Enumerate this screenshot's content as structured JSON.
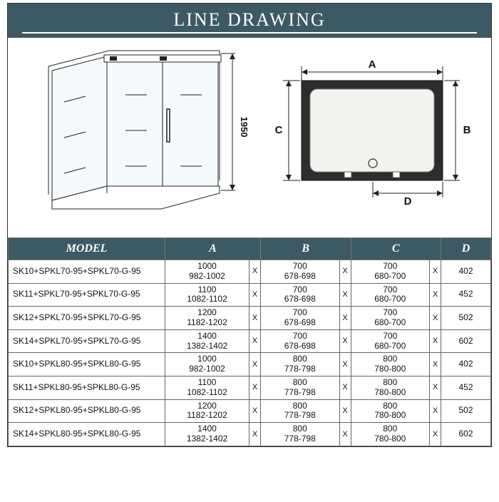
{
  "colors": {
    "header_bg": "#3c5a63",
    "header_fg": "#ffffff",
    "line": "#222222",
    "glass": "#f4f9fc",
    "tray": "#2d2d2d",
    "tray_inner": "#f2f2ee"
  },
  "banner": {
    "title": "LINE DRAWING"
  },
  "iso": {
    "height_label": "1950"
  },
  "topview": {
    "A": "A",
    "B": "B",
    "C": "C",
    "D": "D"
  },
  "table": {
    "headers": [
      "MODEL",
      "A",
      "B",
      "C",
      "D"
    ],
    "rows": [
      {
        "model": "SK10+SPKL70-95+SPKL70-G-95",
        "A": [
          "1000",
          "982-1002"
        ],
        "B": [
          "700",
          "678-698"
        ],
        "C": [
          "700",
          "680-700"
        ],
        "D": "402"
      },
      {
        "model": "SK11+SPKL70-95+SPKL70-G-95",
        "A": [
          "1100",
          "1082-1102"
        ],
        "B": [
          "700",
          "678-698"
        ],
        "C": [
          "700",
          "680-700"
        ],
        "D": "452"
      },
      {
        "model": "SK12+SPKL70-95+SPKL70-G-95",
        "A": [
          "1200",
          "1182-1202"
        ],
        "B": [
          "700",
          "678-698"
        ],
        "C": [
          "700",
          "680-700"
        ],
        "D": "502"
      },
      {
        "model": "SK14+SPKL70-95+SPKL70-G-95",
        "A": [
          "1400",
          "1382-1402"
        ],
        "B": [
          "700",
          "678-698"
        ],
        "C": [
          "700",
          "680-700"
        ],
        "D": "602"
      },
      {
        "model": "SK10+SPKL80-95+SPKL80-G-95",
        "A": [
          "1000",
          "982-1002"
        ],
        "B": [
          "800",
          "778-798"
        ],
        "C": [
          "800",
          "780-800"
        ],
        "D": "402"
      },
      {
        "model": "SK11+SPKL80-95+SPKL80-G-95",
        "A": [
          "1100",
          "1082-1102"
        ],
        "B": [
          "800",
          "778-798"
        ],
        "C": [
          "800",
          "780-800"
        ],
        "D": "452"
      },
      {
        "model": "SK12+SPKL80-95+SPKL80-G-95",
        "A": [
          "1200",
          "1182-1202"
        ],
        "B": [
          "800",
          "778-798"
        ],
        "C": [
          "800",
          "780-800"
        ],
        "D": "502"
      },
      {
        "model": "SK14+SPKL80-95+SPKL80-G-95",
        "A": [
          "1400",
          "1382-1402"
        ],
        "B": [
          "800",
          "778-798"
        ],
        "C": [
          "800",
          "780-800"
        ],
        "D": "602"
      }
    ]
  }
}
